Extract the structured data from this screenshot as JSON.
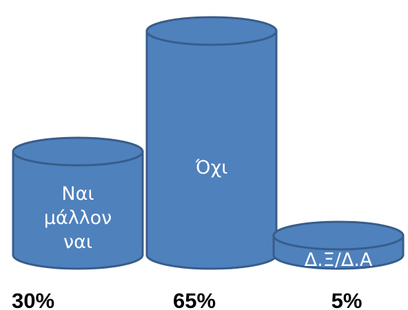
{
  "chart_data": {
    "type": "bar",
    "style": "3d-cylinder",
    "categories": [
      "Ναι μάλλον ναι",
      "Όχι",
      "Δ.Ξ/Δ.Α"
    ],
    "values": [
      30,
      65,
      5
    ],
    "value_labels": [
      "30%",
      "65%",
      "5%"
    ],
    "category_lines": [
      [
        "Ναι",
        "μάλλον",
        "ναι"
      ],
      [
        "Όχι"
      ],
      [
        "Δ.Ξ/Δ.Α"
      ]
    ],
    "unit": "%",
    "title": "",
    "xlabel": "",
    "ylabel": "",
    "grid": false,
    "legend": "none",
    "colors": {
      "fill": "#4f81bd",
      "stroke": "#385d8a",
      "label": "#ffffff",
      "value_label": "#000000"
    }
  }
}
